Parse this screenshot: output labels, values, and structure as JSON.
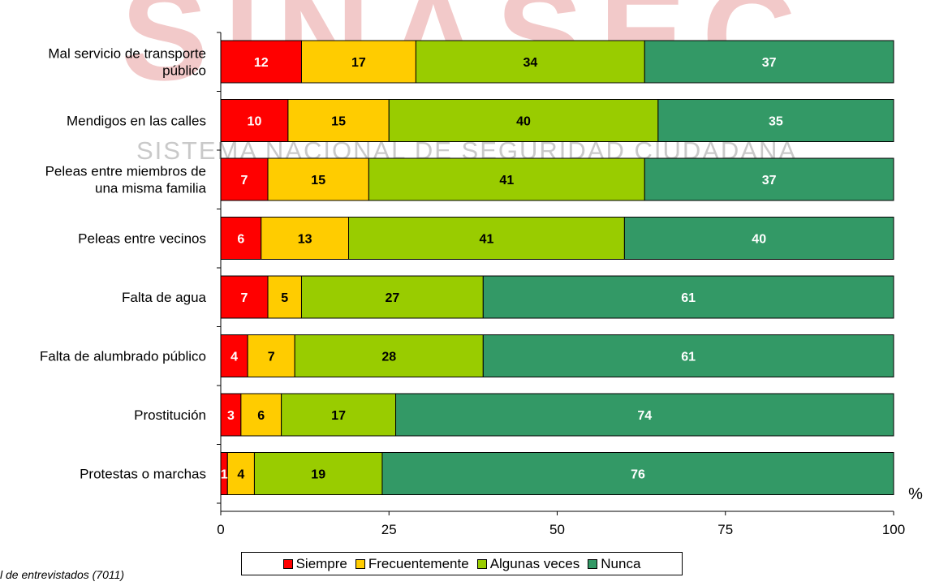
{
  "watermark": {
    "logo_text": "SINASEC",
    "subtitle": "SISTEMA NACIONAL DE SEGURIDAD CIUDADANA",
    "logo_color": "#f2c9c9",
    "subtitle_color": "#c9c9c9"
  },
  "chart_data": {
    "type": "bar",
    "orientation": "horizontal",
    "stacked": true,
    "categories": [
      [
        "Mal servicio de transporte",
        "público"
      ],
      [
        "Mendigos en las calles"
      ],
      [
        "Peleas entre miembros de",
        "una misma familia"
      ],
      [
        "Peleas entre vecinos"
      ],
      [
        "Falta de agua"
      ],
      [
        "Falta de alumbrado público"
      ],
      [
        "Prostitución"
      ],
      [
        "Protestas o marchas"
      ]
    ],
    "series": [
      {
        "name": "Siempre",
        "color": "#ff0000",
        "label_color": "#ffffff",
        "values": [
          12,
          10,
          7,
          6,
          7,
          4,
          3,
          1
        ]
      },
      {
        "name": "Frecuentemente",
        "color": "#ffcc00",
        "label_color": "#000000",
        "values": [
          17,
          15,
          15,
          13,
          5,
          7,
          6,
          4
        ]
      },
      {
        "name": "Algunas veces",
        "color": "#99cc00",
        "label_color": "#000000",
        "values": [
          34,
          40,
          41,
          41,
          27,
          28,
          17,
          19
        ]
      },
      {
        "name": "Nunca",
        "color": "#339966",
        "label_color": "#ffffff",
        "values": [
          37,
          35,
          37,
          40,
          61,
          61,
          74,
          76
        ]
      }
    ],
    "x_ticks": [
      "0",
      "25",
      "50",
      "75",
      "100"
    ],
    "xlim": [
      0,
      100
    ],
    "x_unit": "%",
    "legend_position": "bottom",
    "grid": false
  },
  "footnote": "l de entrevistados (7011)"
}
